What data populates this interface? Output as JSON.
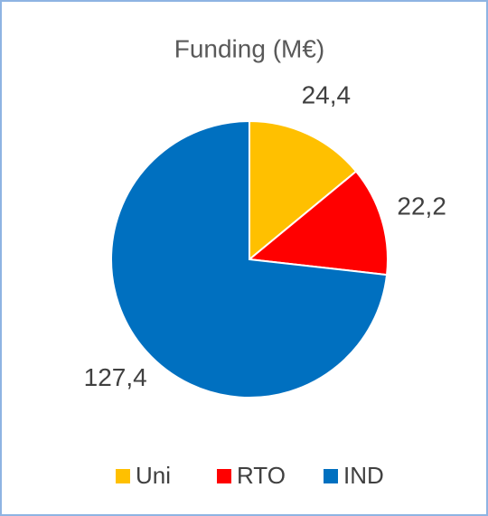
{
  "chart_data": {
    "type": "pie",
    "title": "Funding (M€)",
    "categories": [
      "Uni",
      "RTO",
      "IND"
    ],
    "values": [
      24.4,
      22.2,
      127.4
    ],
    "value_labels": [
      "24,4",
      "22,2",
      "127,4"
    ],
    "colors": [
      "#FFC000",
      "#FF0000",
      "#0070C0"
    ],
    "legend": "bottom"
  }
}
